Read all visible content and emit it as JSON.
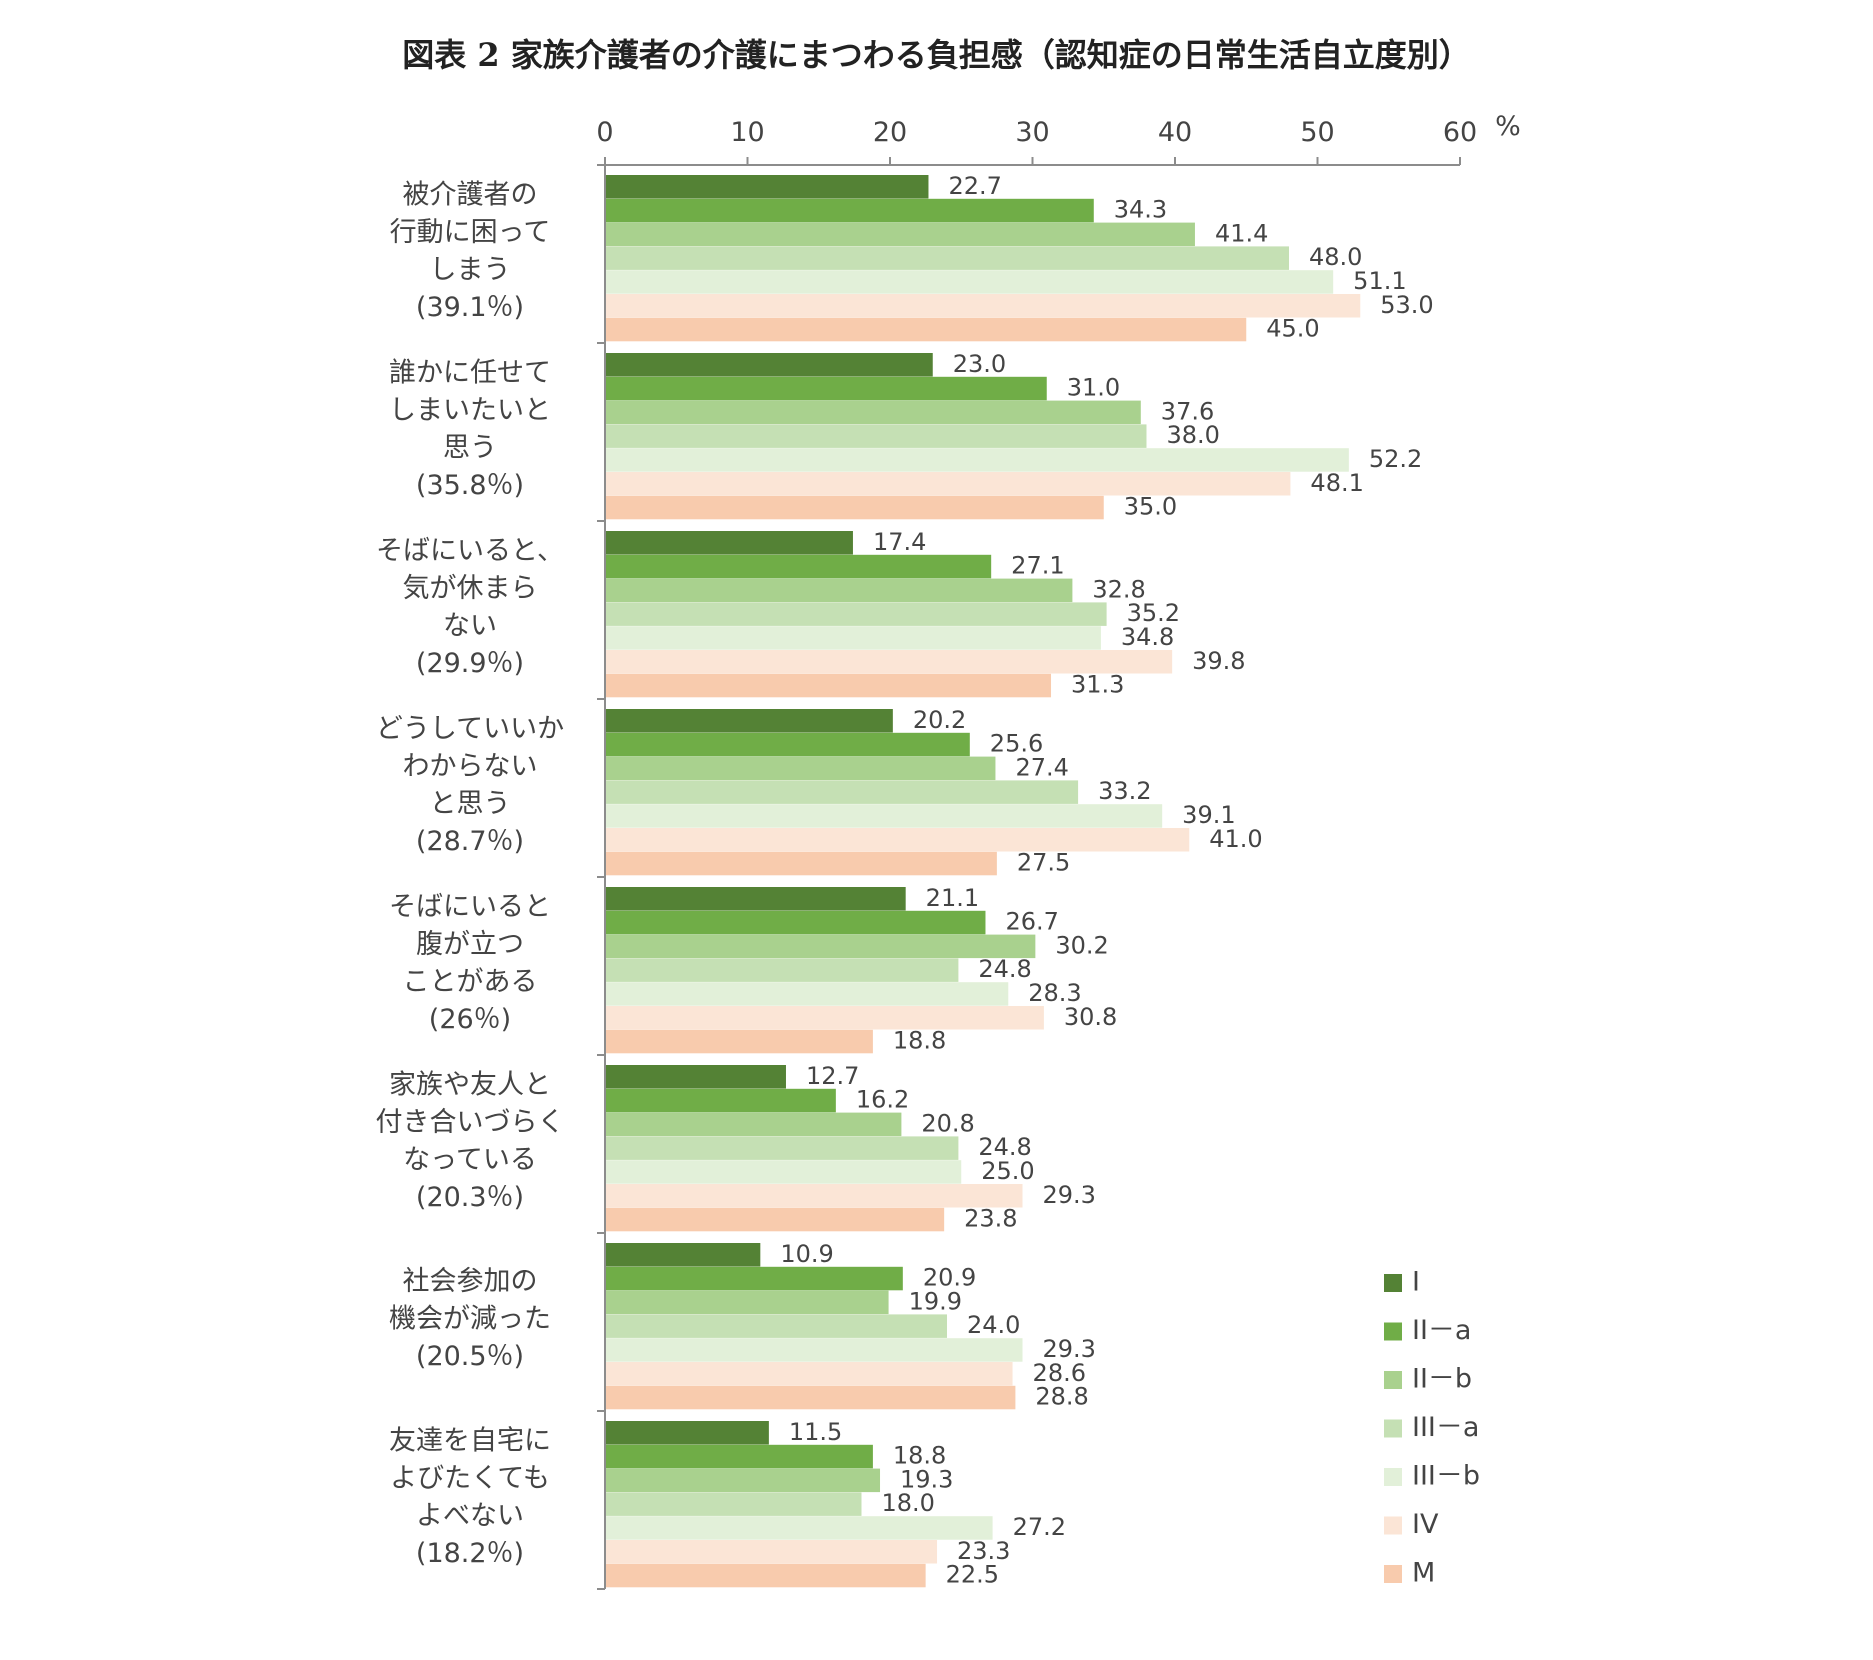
{
  "chart_data": {
    "type": "bar",
    "orientation": "horizontal",
    "title": "図表 2 家族介護者の介護にまつわる負担感（認知症の日常生活自立度別）",
    "unit": "%",
    "xlim": [
      0,
      60
    ],
    "xticks": [
      0,
      10,
      20,
      30,
      40,
      50,
      60
    ],
    "axis_position": "top",
    "legend_position": "bottom-right",
    "categories": [
      {
        "lines": [
          "被介護者の",
          "行動に困って",
          "しまう",
          "(39.1％)"
        ]
      },
      {
        "lines": [
          "誰かに任せて",
          "しまいたいと",
          "思う",
          "(35.8％)"
        ]
      },
      {
        "lines": [
          "そばにいると、",
          "気が休まら",
          "ない",
          "(29.9％)"
        ]
      },
      {
        "lines": [
          "どうしていいか",
          "わからない",
          "と思う",
          "(28.7％)"
        ]
      },
      {
        "lines": [
          "そばにいると",
          "腹が立つ",
          "ことがある",
          "(26％)"
        ]
      },
      {
        "lines": [
          "家族や友人と",
          "付き合いづらく",
          "なっている",
          "(20.3％)"
        ]
      },
      {
        "lines": [
          "社会参加の",
          "機会が減った",
          "(20.5％)"
        ]
      },
      {
        "lines": [
          "友達を自宅に",
          "よびたくても",
          "よべない",
          "(18.2％)"
        ]
      }
    ],
    "series": [
      {
        "name": "I",
        "color": "#548235",
        "values": [
          22.7,
          23.0,
          17.4,
          20.2,
          21.1,
          12.7,
          10.9,
          11.5
        ]
      },
      {
        "name": "II－a",
        "color": "#70ad47",
        "values": [
          34.3,
          31.0,
          27.1,
          25.6,
          26.7,
          16.2,
          20.9,
          18.8
        ]
      },
      {
        "name": "II－b",
        "color": "#a9d18e",
        "values": [
          41.4,
          37.6,
          32.8,
          27.4,
          30.2,
          20.8,
          19.9,
          19.3
        ]
      },
      {
        "name": "III－a",
        "color": "#c5e0b4",
        "values": [
          48.0,
          38.0,
          35.2,
          33.2,
          24.8,
          24.8,
          24.0,
          18.0
        ]
      },
      {
        "name": "III－b",
        "color": "#e2f0d9",
        "values": [
          51.1,
          52.2,
          34.8,
          39.1,
          28.3,
          25.0,
          29.3,
          27.2
        ]
      },
      {
        "name": "IV",
        "color": "#fbe5d6",
        "values": [
          53.0,
          48.1,
          39.8,
          41.0,
          30.8,
          29.3,
          28.6,
          23.3
        ]
      },
      {
        "name": "M",
        "color": "#f8cbad",
        "values": [
          45.0,
          35.0,
          31.3,
          27.5,
          18.8,
          23.8,
          28.8,
          22.5
        ]
      }
    ]
  }
}
